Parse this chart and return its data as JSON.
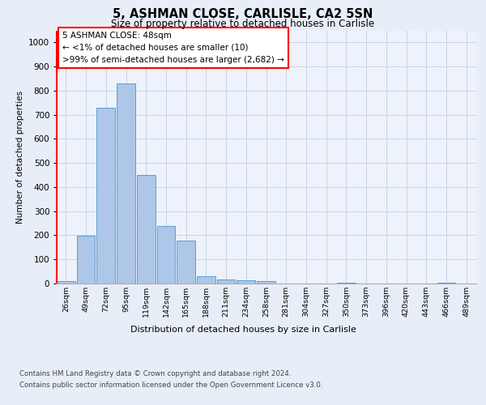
{
  "title_line1": "5, ASHMAN CLOSE, CARLISLE, CA2 5SN",
  "title_line2": "Size of property relative to detached houses in Carlisle",
  "xlabel": "Distribution of detached houses by size in Carlisle",
  "ylabel": "Number of detached properties",
  "categories": [
    "26sqm",
    "49sqm",
    "72sqm",
    "95sqm",
    "119sqm",
    "142sqm",
    "165sqm",
    "188sqm",
    "211sqm",
    "234sqm",
    "258sqm",
    "281sqm",
    "304sqm",
    "327sqm",
    "350sqm",
    "373sqm",
    "396sqm",
    "420sqm",
    "443sqm",
    "466sqm",
    "489sqm"
  ],
  "values": [
    10,
    197,
    730,
    830,
    449,
    238,
    178,
    30,
    17,
    15,
    11,
    0,
    0,
    0,
    5,
    0,
    0,
    0,
    0,
    5,
    0
  ],
  "bar_color": "#aec6e8",
  "bar_edge_color": "#5a9fd4",
  "annotation_text_line1": "5 ASHMAN CLOSE: 48sqm",
  "annotation_text_line2": "← <1% of detached houses are smaller (10)",
  "annotation_text_line3": ">99% of semi-detached houses are larger (2,682) →",
  "ylim": [
    0,
    1050
  ],
  "yticks": [
    0,
    100,
    200,
    300,
    400,
    500,
    600,
    700,
    800,
    900,
    1000
  ],
  "grid_color": "#c8d4e8",
  "footer_line1": "Contains HM Land Registry data © Crown copyright and database right 2024.",
  "footer_line2": "Contains public sector information licensed under the Open Government Licence v3.0.",
  "bg_color": "#e8eef8",
  "plot_bg_color": "#eef2fa"
}
